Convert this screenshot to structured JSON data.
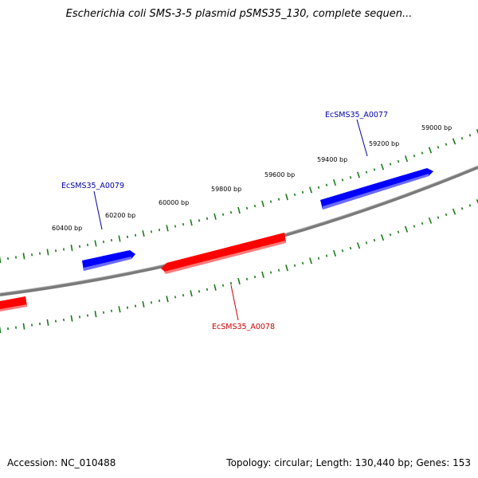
{
  "title": "Escherichia coli SMS-3-5 plasmid pSMS35_130, complete sequen...",
  "footer": {
    "accession": "Accession: NC_010488",
    "summary": "Topology: circular; Length: 130,440 bp; Genes: 153"
  },
  "colors": {
    "forward_strand": "#0000ff",
    "reverse_strand": "#ff0000",
    "backbone": "#808080",
    "ticks": "#1a7a1a"
  },
  "scale_ticks": [
    {
      "bp": 59000,
      "label": "59000 bp"
    },
    {
      "bp": 59200,
      "label": "59200 bp"
    },
    {
      "bp": 59400,
      "label": "59400 bp"
    },
    {
      "bp": 59600,
      "label": "59600 bp"
    },
    {
      "bp": 59800,
      "label": "59800 bp"
    },
    {
      "bp": 60000,
      "label": "60000 bp"
    },
    {
      "bp": 60200,
      "label": "60200 bp"
    },
    {
      "bp": 60400,
      "label": "60400 bp"
    }
  ],
  "genes": [
    {
      "name": "EcSMS35_A0077",
      "strand": "forward"
    },
    {
      "name": "EcSMS35_A0078",
      "strand": "reverse"
    },
    {
      "name": "EcSMS35_A0079",
      "strand": "forward"
    }
  ]
}
